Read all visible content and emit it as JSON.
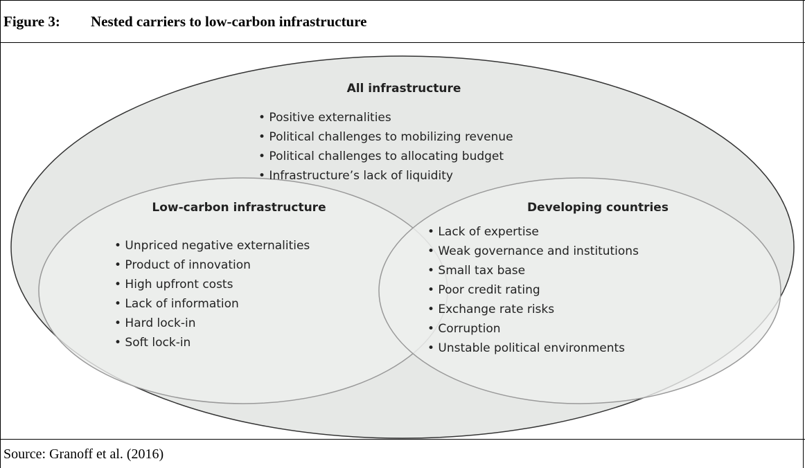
{
  "header": {
    "label": "Figure 3:",
    "title": "Nested carriers to low-carbon infrastructure"
  },
  "outer": {
    "title": "All infrastructure",
    "items": [
      "Positive externalities",
      "Political challenges to mobilizing revenue",
      "Political challenges to allocating budget",
      "Infrastructure’s lack of liquidity"
    ]
  },
  "left": {
    "title": "Low-carbon infrastructure",
    "items": [
      "Unpriced negative externalities",
      "Product of innovation",
      "High upfront costs",
      "Lack of information",
      "Hard lock-in",
      "Soft lock-in"
    ]
  },
  "right": {
    "title": "Developing countries",
    "items": [
      "Lack of expertise",
      "Weak governance and institutions",
      "Small tax base",
      "Poor credit rating",
      "Exchange rate risks",
      "Corruption",
      "Unstable political environments"
    ]
  },
  "source": "Source: Granoff et al. (2016)"
}
